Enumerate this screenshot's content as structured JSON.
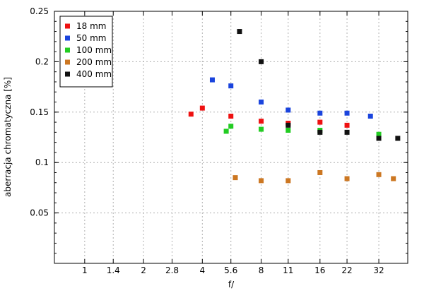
{
  "chart_data": {
    "type": "scatter",
    "title": "",
    "xlabel": "f/",
    "ylabel": "aberracja chromatyczna [%]",
    "x_scale": "log2",
    "xlim": [
      0.7,
      45
    ],
    "ylim": [
      0,
      0.25
    ],
    "grid": true,
    "legend_position": "top-left",
    "x_ticks": [
      {
        "value": 1,
        "label": "1"
      },
      {
        "value": 1.4,
        "label": "1.4"
      },
      {
        "value": 2,
        "label": "2"
      },
      {
        "value": 2.8,
        "label": "2.8"
      },
      {
        "value": 4,
        "label": "4"
      },
      {
        "value": 5.6,
        "label": "5.6"
      },
      {
        "value": 8,
        "label": "8"
      },
      {
        "value": 11,
        "label": "11"
      },
      {
        "value": 16,
        "label": "16"
      },
      {
        "value": 22,
        "label": "22"
      },
      {
        "value": 32,
        "label": "32"
      }
    ],
    "y_ticks": [
      {
        "value": 0.05,
        "label": "0.05"
      },
      {
        "value": 0.1,
        "label": "0.1"
      },
      {
        "value": 0.15,
        "label": "0.15"
      },
      {
        "value": 0.2,
        "label": "0.2"
      },
      {
        "value": 0.25,
        "label": "0.25"
      }
    ],
    "series": [
      {
        "name": "18 mm",
        "color": "#ee1111",
        "points": [
          {
            "x": 3.5,
            "y": 0.148
          },
          {
            "x": 4,
            "y": 0.154
          },
          {
            "x": 5.6,
            "y": 0.146
          },
          {
            "x": 8,
            "y": 0.141
          },
          {
            "x": 11,
            "y": 0.139
          },
          {
            "x": 16,
            "y": 0.14
          },
          {
            "x": 22,
            "y": 0.137
          }
        ]
      },
      {
        "name": "50 mm",
        "color": "#1a44dd",
        "points": [
          {
            "x": 4.5,
            "y": 0.182
          },
          {
            "x": 5.6,
            "y": 0.176
          },
          {
            "x": 8,
            "y": 0.16
          },
          {
            "x": 11,
            "y": 0.152
          },
          {
            "x": 16,
            "y": 0.149
          },
          {
            "x": 22,
            "y": 0.149
          },
          {
            "x": 29,
            "y": 0.146
          }
        ]
      },
      {
        "name": "100 mm",
        "color": "#22cc22",
        "points": [
          {
            "x": 5.3,
            "y": 0.131
          },
          {
            "x": 5.6,
            "y": 0.136
          },
          {
            "x": 8,
            "y": 0.133
          },
          {
            "x": 11,
            "y": 0.132
          },
          {
            "x": 16,
            "y": 0.132
          },
          {
            "x": 32,
            "y": 0.128
          }
        ]
      },
      {
        "name": "200 mm",
        "color": "#cc7722",
        "points": [
          {
            "x": 5.9,
            "y": 0.085
          },
          {
            "x": 8,
            "y": 0.082
          },
          {
            "x": 11,
            "y": 0.082
          },
          {
            "x": 16,
            "y": 0.09
          },
          {
            "x": 22,
            "y": 0.084
          },
          {
            "x": 32,
            "y": 0.088
          },
          {
            "x": 38,
            "y": 0.084
          }
        ]
      },
      {
        "name": "400 mm",
        "color": "#111111",
        "points": [
          {
            "x": 6.2,
            "y": 0.23
          },
          {
            "x": 8,
            "y": 0.2
          },
          {
            "x": 11,
            "y": 0.137
          },
          {
            "x": 16,
            "y": 0.13
          },
          {
            "x": 22,
            "y": 0.13
          },
          {
            "x": 32,
            "y": 0.124
          },
          {
            "x": 40,
            "y": 0.124
          }
        ]
      }
    ]
  }
}
